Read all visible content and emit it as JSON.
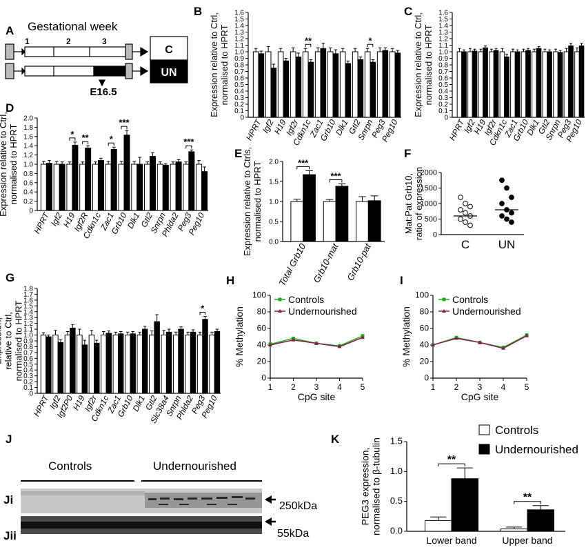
{
  "colors": {
    "control": "#ffffff",
    "treated": "#000000",
    "controls_line": "#1faa1f",
    "undernourished_line": "#8b1a4a"
  },
  "panel_labels": {
    "A": "A",
    "B": "B",
    "C": "C",
    "D": "D",
    "E": "E",
    "F": "F",
    "G": "G",
    "H": "H",
    "I": "I",
    "J": "J",
    "K": "K",
    "Ji": "Ji",
    "Jii": "Jii"
  },
  "panel_a": {
    "title": "Gestational week",
    "weeks": [
      "1",
      "2",
      "3"
    ],
    "box_c": "C",
    "box_un": "UN",
    "timepoint": "E16.5"
  },
  "panel_j": {
    "controls": "Controls",
    "undernourished": "Undernourished",
    "kda_250": "250kDa",
    "kda_55": "55kDa"
  },
  "chart_data": [
    {
      "panel": "B",
      "type": "bar",
      "ylabel": "Expression relative to Ctrl, normalised to HPRT",
      "ylim": [
        0,
        1.6
      ],
      "yticks": [
        "0",
        "0.1",
        "0.2",
        "0.3",
        "0.4",
        "0.5",
        "0.6",
        "0.7",
        "0.8",
        "0.9",
        "1.0",
        "1.1",
        "1.2",
        "1.3",
        "1.4",
        "1.5",
        "1.6"
      ],
      "categories": [
        "HPRT",
        "Igf2",
        "H19",
        "Igf2r",
        "Cdkn1c",
        "Zac1",
        "Grb10",
        "Dlk1",
        "Gtl2",
        "Snrpn",
        "Peg3",
        "Peg10"
      ],
      "series": [
        {
          "values": [
            1,
            1,
            1,
            1,
            1,
            1,
            1,
            1,
            1,
            1,
            1,
            1
          ],
          "errors": [
            0.05,
            0.08,
            0.05,
            0.06,
            0.05,
            0.06,
            0.06,
            0.05,
            0.05,
            0.05,
            0.06,
            0.05
          ]
        },
        {
          "values": [
            0.97,
            0.75,
            0.86,
            0.92,
            0.84,
            1.05,
            0.97,
            0.82,
            0.88,
            0.84,
            1.02,
            0.98
          ],
          "errors": [
            0.04,
            0.06,
            0.04,
            0.06,
            0.04,
            0.08,
            0.06,
            0.04,
            0.04,
            0.04,
            0.04,
            0.04
          ]
        }
      ],
      "significance": [
        {
          "index": 4,
          "label": "**"
        },
        {
          "index": 9,
          "label": "*"
        }
      ]
    },
    {
      "panel": "C",
      "type": "bar",
      "ylabel": "Expression relative to Ctrl, normalised to HPRT",
      "ylim": [
        0,
        1.6
      ],
      "yticks": [
        "0",
        "0.1",
        "0.2",
        "0.3",
        "0.4",
        "0.5",
        "0.6",
        "0.7",
        "0.8",
        "0.9",
        "1.0",
        "1.1",
        "1.2",
        "1.3",
        "1.4",
        "1.5",
        "1.6"
      ],
      "categories": [
        "HPRT",
        "Igf2",
        "H19",
        "Igf2r",
        "Cdkn1c",
        "Zac1",
        "Grb10",
        "Dlk1",
        "Gtl2",
        "Snrpn",
        "Peg3",
        "Peg10"
      ],
      "series": [
        {
          "values": [
            1,
            1,
            1,
            1,
            1,
            1,
            1,
            1,
            1,
            1,
            1,
            1
          ],
          "errors": [
            0.05,
            0.05,
            0.04,
            0.04,
            0.05,
            0.04,
            0.04,
            0.04,
            0.04,
            0.04,
            0.05,
            0.06
          ]
        },
        {
          "values": [
            1.0,
            1.01,
            1.06,
            1.02,
            0.92,
            1.0,
            1.02,
            1.05,
            1.0,
            0.99,
            1.09,
            1.09
          ],
          "errors": [
            0.03,
            0.03,
            0.03,
            0.03,
            0.04,
            0.03,
            0.03,
            0.03,
            0.03,
            0.03,
            0.04,
            0.04
          ]
        }
      ],
      "significance": []
    },
    {
      "panel": "D",
      "type": "bar",
      "ylabel": "Expression relative to Ctrl, normalised to HPRT",
      "ylim": [
        0,
        2.0
      ],
      "yticks": [
        "0",
        "0.2",
        "0.4",
        "0.6",
        "0.8",
        "1.0",
        "1.2",
        "1.4",
        "1.6",
        "1.8",
        "2.0"
      ],
      "categories": [
        "HPRT",
        "Igf2",
        "H19",
        "Igf2R",
        "Cdkn1c",
        "Zac1",
        "Grb10",
        "Dlk1",
        "Gtl2",
        "Snrpn",
        "Phlda2",
        "Peg3",
        "Peg10"
      ],
      "series": [
        {
          "values": [
            1,
            1,
            1,
            1,
            1,
            1,
            1,
            1,
            1,
            1,
            1,
            1,
            1
          ],
          "errors": [
            0.06,
            0.06,
            0.05,
            0.05,
            0.05,
            0.06,
            0.06,
            0.06,
            0.05,
            0.05,
            0.05,
            0.05,
            0.08
          ]
        },
        {
          "values": [
            1.02,
            1.0,
            1.41,
            1.35,
            1.08,
            1.32,
            1.63,
            1.0,
            1.17,
            0.98,
            1.05,
            1.27,
            0.84
          ],
          "errors": [
            0.06,
            0.05,
            0.07,
            0.05,
            0.05,
            0.05,
            0.1,
            0.15,
            0.08,
            0.03,
            0.05,
            0.04,
            0.1
          ]
        }
      ],
      "significance": [
        {
          "index": 2,
          "label": "*"
        },
        {
          "index": 3,
          "label": "**"
        },
        {
          "index": 5,
          "label": "*"
        },
        {
          "index": 6,
          "label": "***"
        },
        {
          "index": 11,
          "label": "***"
        }
      ]
    },
    {
      "panel": "E",
      "type": "bar",
      "ylabel": "Expression relative to Ctrls, normalised to HPRT",
      "ylim": [
        0,
        2.0
      ],
      "yticks": [
        "0.0",
        "0.5",
        "1.0",
        "1.5",
        "2.0"
      ],
      "categories": [
        "Total Grb10",
        "Grb10-mat",
        "Grb10-pat"
      ],
      "series": [
        {
          "values": [
            1.0,
            1.0,
            1.0
          ],
          "errors": [
            0.06,
            0.05,
            0.12
          ]
        },
        {
          "values": [
            1.67,
            1.38,
            1.02
          ],
          "errors": [
            0.1,
            0.06,
            0.12
          ]
        }
      ],
      "significance": [
        {
          "index": 0,
          "label": "***"
        },
        {
          "index": 1,
          "label": "***"
        }
      ]
    },
    {
      "panel": "F",
      "type": "scatter",
      "ylabel": "Mat:Pat Grb10 ratio of expression",
      "ylim": [
        0,
        2000
      ],
      "yticks": [
        "0",
        "500",
        "1000",
        "1500",
        "2000"
      ],
      "categories": [
        "C",
        "UN"
      ],
      "groups": [
        {
          "values": [
            1200,
            1000,
            900,
            800,
            700,
            600,
            500,
            400,
            300
          ],
          "mean": 600
        },
        {
          "values": [
            1750,
            1500,
            1200,
            1000,
            800,
            700,
            600,
            500,
            400
          ],
          "mean": 800
        }
      ]
    },
    {
      "panel": "G",
      "type": "bar",
      "ylabel": "Expression, relative to Ctrl, normalised to HPRT",
      "ylim": [
        0,
        1.8
      ],
      "yticks": [
        "0",
        "0.1",
        "0.2",
        "0.3",
        "0.4",
        "0.5",
        "0.6",
        "0.7",
        "0.8",
        "0.9",
        "1.0",
        "1.1",
        "1.2",
        "1.3",
        "1.4",
        "1.5",
        "1.6",
        "1.7",
        "1.8"
      ],
      "categories": [
        "HPRT",
        "Igf2",
        "Igf2P0",
        "H19",
        "Igf2r",
        "Cdkn1c",
        "Zac1",
        "Grb10",
        "Dlk1",
        "Gtl2",
        "Slc38a4",
        "Snrpn",
        "Phlda2",
        "Peg3",
        "Peg10"
      ],
      "series": [
        {
          "values": [
            1,
            1,
            1,
            1,
            1,
            1,
            1,
            1,
            1,
            1,
            1,
            1,
            1,
            1,
            1
          ],
          "errors": [
            0.04,
            0.08,
            0.06,
            0.1,
            0.08,
            0.06,
            0.05,
            0.05,
            0.05,
            0.07,
            0.08,
            0.05,
            0.05,
            0.05,
            0.05
          ]
        },
        {
          "values": [
            0.97,
            0.87,
            1.12,
            0.83,
            0.86,
            1.03,
            1.02,
            1.02,
            1.1,
            1.23,
            1.05,
            1.1,
            1.05,
            1.27,
            1.06
          ],
          "errors": [
            0.03,
            0.05,
            0.06,
            0.08,
            0.05,
            0.04,
            0.04,
            0.04,
            0.05,
            0.12,
            0.05,
            0.04,
            0.04,
            0.05,
            0.04
          ]
        }
      ],
      "significance": [
        {
          "index": 13,
          "label": "*"
        }
      ]
    },
    {
      "panel": "H",
      "type": "line",
      "xlabel": "CpG site",
      "ylabel": "% Methylation",
      "ylim": [
        0,
        100
      ],
      "xlim": [
        1,
        5
      ],
      "yticks": [
        "0",
        "20",
        "40",
        "60",
        "80",
        "100"
      ],
      "x": [
        1,
        2,
        3,
        4,
        5
      ],
      "xticks": [
        "1",
        "2",
        "3",
        "4",
        "5"
      ],
      "series": [
        {
          "name": "Controls",
          "values": [
            41,
            48,
            42,
            39,
            51
          ]
        },
        {
          "name": "Undernourished",
          "values": [
            40,
            46,
            42,
            38,
            49
          ]
        }
      ],
      "legend": "top-right"
    },
    {
      "panel": "I",
      "type": "line",
      "xlabel": "CpG site",
      "ylabel": "% Methylation",
      "ylim": [
        0,
        100
      ],
      "xlim": [
        1,
        5
      ],
      "yticks": [
        "0",
        "20",
        "40",
        "60",
        "80",
        "100"
      ],
      "x": [
        1,
        2,
        3,
        4,
        5
      ],
      "xticks": [
        "1",
        "2",
        "3",
        "4",
        "5"
      ],
      "series": [
        {
          "name": "Controls",
          "values": [
            40,
            49,
            43,
            37,
            52
          ]
        },
        {
          "name": "Undernourished",
          "values": [
            40,
            48,
            43,
            36,
            51
          ]
        }
      ],
      "legend": "top-right"
    },
    {
      "panel": "K",
      "type": "bar",
      "ylabel": "PEG3 expression, normalised to β-tubulin",
      "ylim": [
        0,
        1.5
      ],
      "yticks": [
        "0.0",
        "0.5",
        "1.0",
        "1.5"
      ],
      "categories": [
        "Lower band",
        "Upper band"
      ],
      "series": [
        {
          "name": "Controls",
          "values": [
            0.18,
            0.04
          ],
          "errors": [
            0.06,
            0.03
          ]
        },
        {
          "name": "Undernourished",
          "values": [
            0.88,
            0.36
          ],
          "errors": [
            0.18,
            0.07
          ]
        }
      ],
      "significance": [
        {
          "index": 0,
          "label": "**"
        },
        {
          "index": 1,
          "label": "**"
        }
      ],
      "legend": "top-right"
    }
  ]
}
